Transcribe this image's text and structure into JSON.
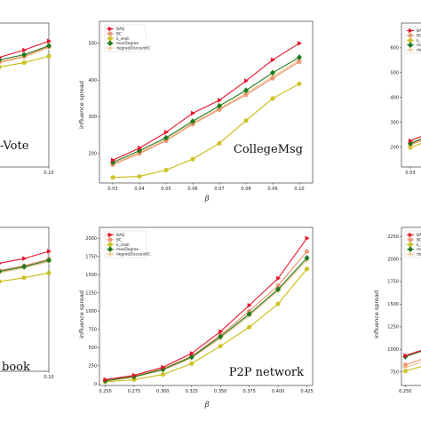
{
  "styles": [
    {
      "key": "BAQ",
      "color": "#e8122a",
      "marker": "triangle"
    },
    {
      "key": "BC",
      "color": "#e8906a",
      "marker": "circle"
    },
    {
      "key": "k_shell",
      "color": "#c8bc10",
      "marker": "circle"
    },
    {
      "key": "maxDegree",
      "color": "#1f7a1f",
      "marker": "diamond"
    },
    {
      "key": "degreeDiscountIC",
      "color": "#f0c080",
      "marker": "plus"
    }
  ],
  "chart_data": [
    {
      "id": "p1",
      "type": "line",
      "title": "-Vote",
      "xlabel": "",
      "ylabel": "",
      "xlim": [
        0.03,
        0.1
      ],
      "ylim": [
        120,
        520
      ],
      "x_ticks": [
        0.1
      ],
      "x_tick_labels": [
        "0.10"
      ],
      "y_ticks": [],
      "series": [
        {
          "name": "BAQ",
          "x": [
            0.07,
            0.08,
            0.09,
            0.1
          ],
          "values": [
            410,
            425,
            445,
            470
          ]
        },
        {
          "name": "BC",
          "x": [
            0.07,
            0.08,
            0.09,
            0.1
          ],
          "values": [
            398,
            412,
            428,
            455
          ]
        },
        {
          "name": "maxDegree",
          "x": [
            0.07,
            0.08,
            0.09,
            0.1
          ],
          "values": [
            402,
            418,
            432,
            457
          ]
        },
        {
          "name": "k_shell",
          "x": [
            0.07,
            0.08,
            0.09,
            0.1
          ],
          "values": [
            385,
            398,
            410,
            428
          ]
        },
        {
          "name": "degreeDiscountIC",
          "x": [
            0.07,
            0.08,
            0.09,
            0.1
          ],
          "values": [
            395,
            410,
            425,
            452
          ]
        }
      ]
    },
    {
      "id": "p2",
      "type": "line",
      "title": "CollegeMsg",
      "xlabel": "β",
      "ylabel": "influence spread",
      "xlim": [
        0.025,
        0.105
      ],
      "ylim": [
        120,
        560
      ],
      "x_ticks": [
        0.03,
        0.04,
        0.05,
        0.06,
        0.07,
        0.08,
        0.09,
        0.1
      ],
      "x_tick_labels": [
        "0.03",
        "0.04",
        "0.05",
        "0.06",
        "0.07",
        "0.08",
        "0.09",
        "0.10"
      ],
      "y_ticks": [
        200,
        300,
        400,
        500
      ],
      "y_tick_labels": [
        "200",
        "300",
        "400",
        "500"
      ],
      "legend": "top-left",
      "series": [
        {
          "name": "BAQ",
          "x": [
            0.03,
            0.04,
            0.05,
            0.06,
            0.07,
            0.08,
            0.09,
            0.1
          ],
          "values": [
            182,
            215,
            258,
            310,
            345,
            398,
            455,
            500
          ]
        },
        {
          "name": "BC",
          "x": [
            0.03,
            0.04,
            0.05,
            0.06,
            0.07,
            0.08,
            0.09,
            0.1
          ],
          "values": [
            170,
            200,
            235,
            280,
            320,
            360,
            405,
            450
          ]
        },
        {
          "name": "k_shell",
          "x": [
            0.03,
            0.04,
            0.05,
            0.06,
            0.07,
            0.08,
            0.09,
            0.1
          ],
          "values": [
            135,
            138,
            155,
            185,
            228,
            290,
            350,
            390
          ]
        },
        {
          "name": "maxDegree",
          "x": [
            0.03,
            0.04,
            0.05,
            0.06,
            0.07,
            0.08,
            0.09,
            0.1
          ],
          "values": [
            176,
            208,
            243,
            288,
            330,
            372,
            420,
            462
          ]
        },
        {
          "name": "degreeDiscountIC",
          "x": [
            0.03,
            0.04,
            0.05,
            0.06,
            0.07,
            0.08,
            0.09,
            0.1
          ],
          "values": [
            172,
            203,
            238,
            283,
            323,
            364,
            410,
            455
          ]
        }
      ]
    },
    {
      "id": "p3",
      "type": "line",
      "title": "",
      "xlabel": "",
      "ylabel": "",
      "xlim": [
        0.025,
        0.105
      ],
      "ylim": [
        120,
        700
      ],
      "x_ticks": [
        0.03
      ],
      "x_tick_labels": [
        "0.03"
      ],
      "y_ticks": [
        200,
        300,
        400,
        500,
        600
      ],
      "y_tick_labels": [
        "200",
        "300",
        "400",
        "500",
        "600"
      ],
      "legend": "top-left",
      "series": [
        {
          "name": "BAQ",
          "x": [
            0.03,
            0.04
          ],
          "values": [
            225,
            255
          ]
        },
        {
          "name": "BC",
          "x": [
            0.03,
            0.04
          ],
          "values": [
            212,
            240
          ]
        },
        {
          "name": "k_shell",
          "x": [
            0.03,
            0.04
          ],
          "values": [
            198,
            226
          ]
        },
        {
          "name": "maxDegree",
          "x": [
            0.03,
            0.04
          ],
          "values": [
            215,
            245
          ]
        },
        {
          "name": "degreeDiscountIC",
          "x": [
            0.03,
            0.04
          ],
          "values": [
            208,
            236
          ]
        }
      ]
    },
    {
      "id": "p4",
      "type": "line",
      "title": "book",
      "xlabel": "",
      "ylabel": "",
      "xlim": [
        0.03,
        0.1
      ],
      "ylim": [
        0,
        1200
      ],
      "x_ticks": [
        0.1
      ],
      "x_tick_labels": [
        "0.10"
      ],
      "y_ticks": [],
      "series": [
        {
          "name": "BAQ",
          "x": [
            0.07,
            0.08,
            0.09,
            0.1
          ],
          "values": [
            860,
            900,
            940,
            1000
          ]
        },
        {
          "name": "BC",
          "x": [
            0.07,
            0.08,
            0.09,
            0.1
          ],
          "values": [
            800,
            840,
            880,
            935
          ]
        },
        {
          "name": "maxDegree",
          "x": [
            0.07,
            0.08,
            0.09,
            0.1
          ],
          "values": [
            790,
            832,
            872,
            925
          ]
        },
        {
          "name": "k_shell",
          "x": [
            0.07,
            0.08,
            0.09,
            0.1
          ],
          "values": [
            720,
            748,
            780,
            820
          ]
        },
        {
          "name": "degreeDiscountIC",
          "x": [
            0.07,
            0.08,
            0.09,
            0.1
          ],
          "values": [
            780,
            822,
            862,
            915
          ]
        }
      ]
    },
    {
      "id": "p5",
      "type": "line",
      "title": "P2P network",
      "xlabel": "β",
      "ylabel": "influence spread",
      "xlim": [
        0.245,
        0.43
      ],
      "ylim": [
        -20,
        2150
      ],
      "x_ticks": [
        0.25,
        0.275,
        0.3,
        0.325,
        0.35,
        0.375,
        0.4,
        0.425
      ],
      "x_tick_labels": [
        "0.250",
        "0.275",
        "0.300",
        "0.325",
        "0.350",
        "0.375",
        "0.400",
        "0.425"
      ],
      "y_ticks": [
        0,
        250,
        500,
        750,
        1000,
        1250,
        1500,
        1750,
        2000
      ],
      "y_tick_labels": [
        "0",
        "250",
        "500",
        "750",
        "1000",
        "1250",
        "1500",
        "1750",
        "2000"
      ],
      "legend": "top-left",
      "series": [
        {
          "name": "BAQ",
          "x": [
            0.25,
            0.275,
            0.3,
            0.325,
            0.35,
            0.375,
            0.4,
            0.425
          ],
          "values": [
            60,
            120,
            230,
            420,
            720,
            1080,
            1450,
            2000
          ]
        },
        {
          "name": "BC",
          "x": [
            0.25,
            0.275,
            0.3,
            0.325,
            0.35,
            0.375,
            0.4,
            0.425
          ],
          "values": [
            50,
            110,
            210,
            380,
            670,
            1000,
            1350,
            1820
          ]
        },
        {
          "name": "k_shell",
          "x": [
            0.25,
            0.275,
            0.3,
            0.325,
            0.35,
            0.375,
            0.4,
            0.425
          ],
          "values": [
            30,
            60,
            130,
            280,
            520,
            780,
            1100,
            1580
          ]
        },
        {
          "name": "maxDegree",
          "x": [
            0.25,
            0.275,
            0.3,
            0.325,
            0.35,
            0.375,
            0.4,
            0.425
          ],
          "values": [
            45,
            100,
            200,
            370,
            650,
            960,
            1300,
            1730
          ]
        },
        {
          "name": "degreeDiscountIC",
          "x": [
            0.25,
            0.275,
            0.3,
            0.325,
            0.35,
            0.375,
            0.4,
            0.425
          ],
          "values": [
            40,
            95,
            190,
            360,
            630,
            940,
            1280,
            1700
          ]
        }
      ]
    },
    {
      "id": "p6",
      "type": "line",
      "title": "",
      "xlabel": "",
      "ylabel": "influence spread",
      "xlim": [
        0.245,
        0.43
      ],
      "ylim": [
        600,
        2350
      ],
      "x_ticks": [
        0.25
      ],
      "x_tick_labels": [
        "0.250"
      ],
      "y_ticks": [
        750,
        1000,
        1250,
        1500,
        1750,
        2000,
        2250
      ],
      "y_tick_labels": [
        "750",
        "1000",
        "1250",
        "1500",
        "1750",
        "2000",
        "2250"
      ],
      "legend": "top-left",
      "series": [
        {
          "name": "BAQ",
          "x": [
            0.25,
            0.275
          ],
          "values": [
            930,
            1000
          ]
        },
        {
          "name": "BC",
          "x": [
            0.25,
            0.275
          ],
          "values": [
            830,
            900
          ]
        },
        {
          "name": "k_shell",
          "x": [
            0.25,
            0.275
          ],
          "values": [
            760,
            820
          ]
        },
        {
          "name": "maxDegree",
          "x": [
            0.25,
            0.275
          ],
          "values": [
            920,
            990
          ]
        },
        {
          "name": "degreeDiscountIC",
          "x": [
            0.25,
            0.275
          ],
          "values": [
            800,
            870
          ]
        }
      ]
    }
  ]
}
